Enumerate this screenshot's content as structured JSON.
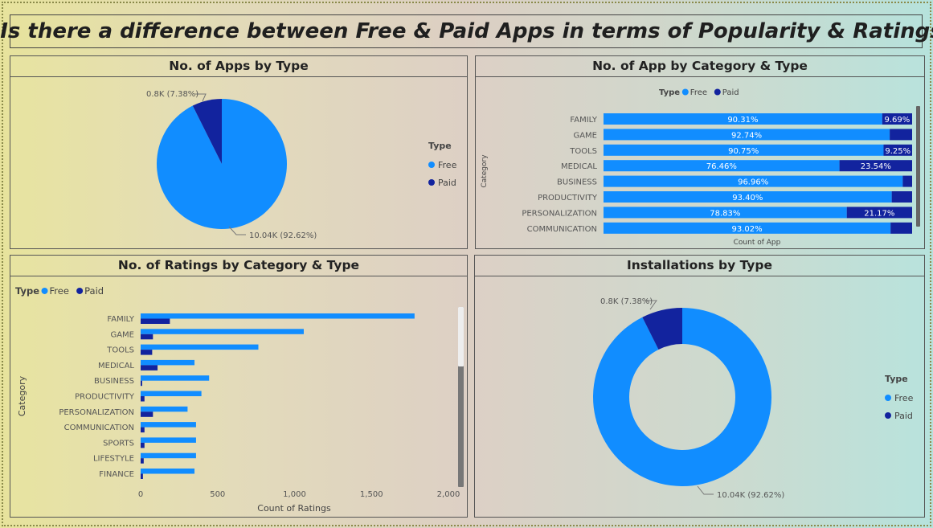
{
  "page_title": "3. Is there a difference between Free & Paid Apps in terms of Popularity & Ratings ?",
  "colors": {
    "free": "#118dff",
    "paid": "#12239e"
  },
  "panels": {
    "apps_by_type": "No. of Apps by Type",
    "app_by_category_type": "No. of App by Category & Type",
    "ratings_by_category_type": "No. of Ratings by Category & Type",
    "installations_by_type": "Installations by Type"
  },
  "chart_data": [
    {
      "id": "apps_by_type",
      "type": "pie",
      "title": "No. of Apps by Type",
      "legend_title": "Type",
      "legend_position": "right",
      "labels": [
        "Free",
        "Paid"
      ],
      "values": [
        10.04,
        0.8
      ],
      "data_labels": [
        "10.04K (92.62%)",
        "0.8K (7.38%)"
      ]
    },
    {
      "id": "app_by_category_type",
      "type": "bar",
      "orientation": "horizontal",
      "stacking": "100%",
      "title": "No. of App by Category & Type",
      "legend_title": "Type",
      "legend_position": "top-left",
      "xlabel": "Count of App",
      "ylabel": "Category",
      "categories": [
        "FAMILY",
        "GAME",
        "TOOLS",
        "MEDICAL",
        "BUSINESS",
        "PRODUCTIVITY",
        "PERSONALIZATION",
        "COMMUNICATION"
      ],
      "series": [
        {
          "name": "Free",
          "values": [
            90.31,
            92.74,
            90.75,
            76.46,
            96.96,
            93.4,
            78.83,
            93.02
          ],
          "labels": [
            "90.31%",
            "92.74%",
            "90.75%",
            "76.46%",
            "96.96%",
            "93.40%",
            "78.83%",
            "93.02%"
          ]
        },
        {
          "name": "Paid",
          "values": [
            9.69,
            7.26,
            9.25,
            23.54,
            3.04,
            6.6,
            21.17,
            6.98
          ],
          "labels": [
            "9.69%",
            "",
            "9.25%",
            "23.54%",
            "",
            "",
            "21.17%",
            ""
          ]
        }
      ]
    },
    {
      "id": "ratings_by_category_type",
      "type": "bar",
      "orientation": "horizontal",
      "stacking": "clustered",
      "title": "No. of Ratings by Category & Type",
      "legend_title": "Type",
      "legend_position": "top-left",
      "xlabel": "Count of Ratings",
      "ylabel": "Category",
      "xlim": [
        0,
        2000
      ],
      "xticks": [
        0,
        500,
        1000,
        1500,
        2000
      ],
      "xtick_labels": [
        "0",
        "500",
        "1,000",
        "1,500",
        "2,000"
      ],
      "categories": [
        "FAMILY",
        "GAME",
        "TOOLS",
        "MEDICAL",
        "BUSINESS",
        "PRODUCTIVITY",
        "PERSONALIZATION",
        "COMMUNICATION",
        "SPORTS",
        "LIFESTYLE",
        "FINANCE"
      ],
      "series": [
        {
          "name": "Free",
          "values": [
            1780,
            1060,
            765,
            350,
            445,
            395,
            305,
            360,
            360,
            360,
            350
          ]
        },
        {
          "name": "Paid",
          "values": [
            190,
            80,
            75,
            110,
            10,
            25,
            80,
            25,
            25,
            20,
            15
          ]
        }
      ]
    },
    {
      "id": "installations_by_type",
      "type": "pie",
      "style": "donut",
      "title": "Installations by Type",
      "legend_title": "Type",
      "legend_position": "right",
      "labels": [
        "Free",
        "Paid"
      ],
      "values": [
        10.04,
        0.8
      ],
      "data_labels": [
        "10.04K (92.62%)",
        "0.8K (7.38%)"
      ]
    }
  ]
}
